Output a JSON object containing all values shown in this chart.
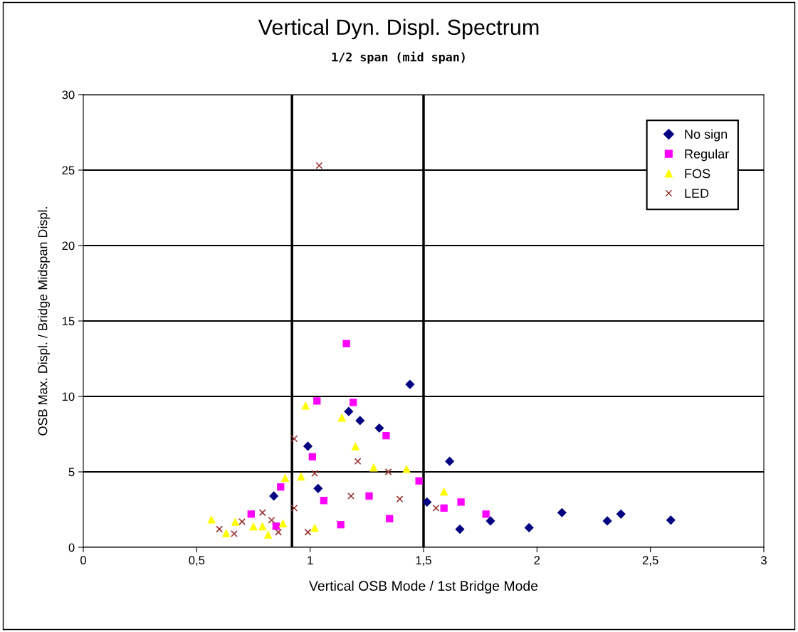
{
  "chart_data": {
    "type": "scatter",
    "title": "Vertical Dyn. Displ. Spectrum",
    "subtitle": "1/2 span (mid span)",
    "xlabel": "Vertical OSB Mode / 1st Bridge Mode",
    "ylabel": "OSB Max. Displ. / Bridge Midspan Displ.",
    "xlim": [
      0,
      3
    ],
    "xticks": [
      0,
      {
        "value": 0.5,
        "label": "0,5"
      },
      1,
      {
        "value": 1.5,
        "label": "1,5"
      },
      2,
      {
        "value": 2.5,
        "label": "2,5"
      },
      3
    ],
    "ylim": [
      0,
      30
    ],
    "yticks": [
      0,
      5,
      10,
      15,
      20,
      25,
      30
    ],
    "grid": "y",
    "legend": "top right",
    "ref_lines": [
      {
        "axis": "x",
        "value": 0.92,
        "color": "#000000"
      },
      {
        "axis": "x",
        "value": 1.5,
        "color": "#000000"
      }
    ],
    "series": [
      {
        "name": "No sign",
        "color": "#000080",
        "marker": "diamond",
        "x": [
          0.84,
          0.99,
          1.035,
          1.17,
          1.22,
          1.305,
          1.44,
          1.515,
          1.615,
          1.66,
          1.795,
          1.965,
          2.11,
          2.31,
          2.37,
          2.59
        ],
        "values": [
          3.4,
          6.7,
          3.9,
          9.0,
          8.4,
          7.9,
          10.8,
          3.0,
          5.7,
          1.2,
          1.75,
          1.3,
          2.3,
          1.75,
          2.2,
          1.8
        ]
      },
      {
        "name": "Regular",
        "color": "#ff00ff",
        "marker": "square",
        "x": [
          0.74,
          0.85,
          0.87,
          1.01,
          1.03,
          1.06,
          1.135,
          1.16,
          1.19,
          1.26,
          1.335,
          1.35,
          1.48,
          1.59,
          1.665,
          1.775
        ],
        "values": [
          2.2,
          1.4,
          4.0,
          6.0,
          9.7,
          3.1,
          1.5,
          13.5,
          9.6,
          3.4,
          7.4,
          1.9,
          4.4,
          2.6,
          3.0,
          2.2
        ]
      },
      {
        "name": "FOS",
        "color": "#ffff00",
        "marker": "triangle",
        "x": [
          0.565,
          0.63,
          0.67,
          0.75,
          0.79,
          0.815,
          0.88,
          0.89,
          0.96,
          0.98,
          1.02,
          1.14,
          1.2,
          1.28,
          1.425,
          1.59
        ],
        "values": [
          1.85,
          0.95,
          1.7,
          1.4,
          1.4,
          0.85,
          1.6,
          4.6,
          4.7,
          9.4,
          1.3,
          8.6,
          6.7,
          5.3,
          5.2,
          3.7
        ]
      },
      {
        "name": "LED",
        "color": "#993333",
        "marker": "cross",
        "x": [
          0.6,
          0.665,
          0.7,
          0.79,
          0.83,
          0.86,
          0.93,
          0.93,
          0.99,
          1.02,
          1.04,
          1.18,
          1.21,
          1.345,
          1.395,
          1.555
        ],
        "values": [
          1.2,
          0.9,
          1.7,
          2.3,
          1.8,
          1.0,
          7.2,
          2.6,
          1.0,
          4.9,
          25.3,
          3.4,
          5.7,
          5.0,
          3.2,
          2.6
        ]
      }
    ]
  }
}
